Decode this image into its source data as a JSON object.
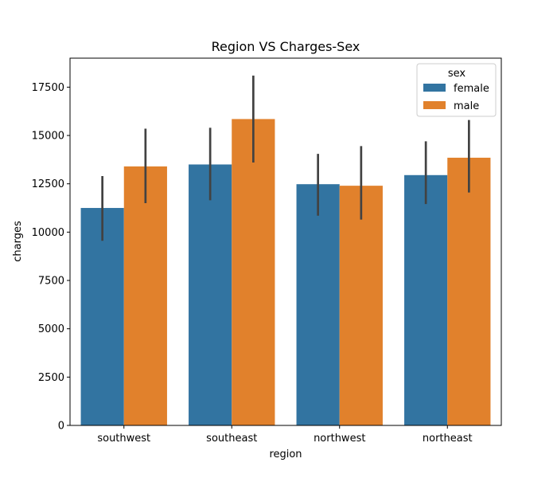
{
  "chart_data": {
    "type": "bar",
    "title": "Region VS Charges-Sex",
    "xlabel": "region",
    "ylabel": "charges",
    "categories": [
      "southwest",
      "southeast",
      "northwest",
      "northeast"
    ],
    "ylim": [
      0,
      19000
    ],
    "yticks": [
      0,
      2500,
      5000,
      7500,
      10000,
      12500,
      15000,
      17500
    ],
    "legend": {
      "title": "sex",
      "placement": "top-right"
    },
    "grid": false,
    "series": [
      {
        "name": "female",
        "color": "#3274a1",
        "values": [
          11250,
          13500,
          12480,
          12950
        ],
        "error_low": [
          9550,
          11650,
          10850,
          11450
        ],
        "error_high": [
          12900,
          15400,
          14050,
          14700
        ]
      },
      {
        "name": "male",
        "color": "#e1812c",
        "values": [
          13400,
          15850,
          12400,
          13850
        ],
        "error_low": [
          11500,
          13600,
          10650,
          12050
        ],
        "error_high": [
          15350,
          18100,
          14450,
          15800
        ]
      }
    ],
    "errorbar_color": "#424242"
  }
}
